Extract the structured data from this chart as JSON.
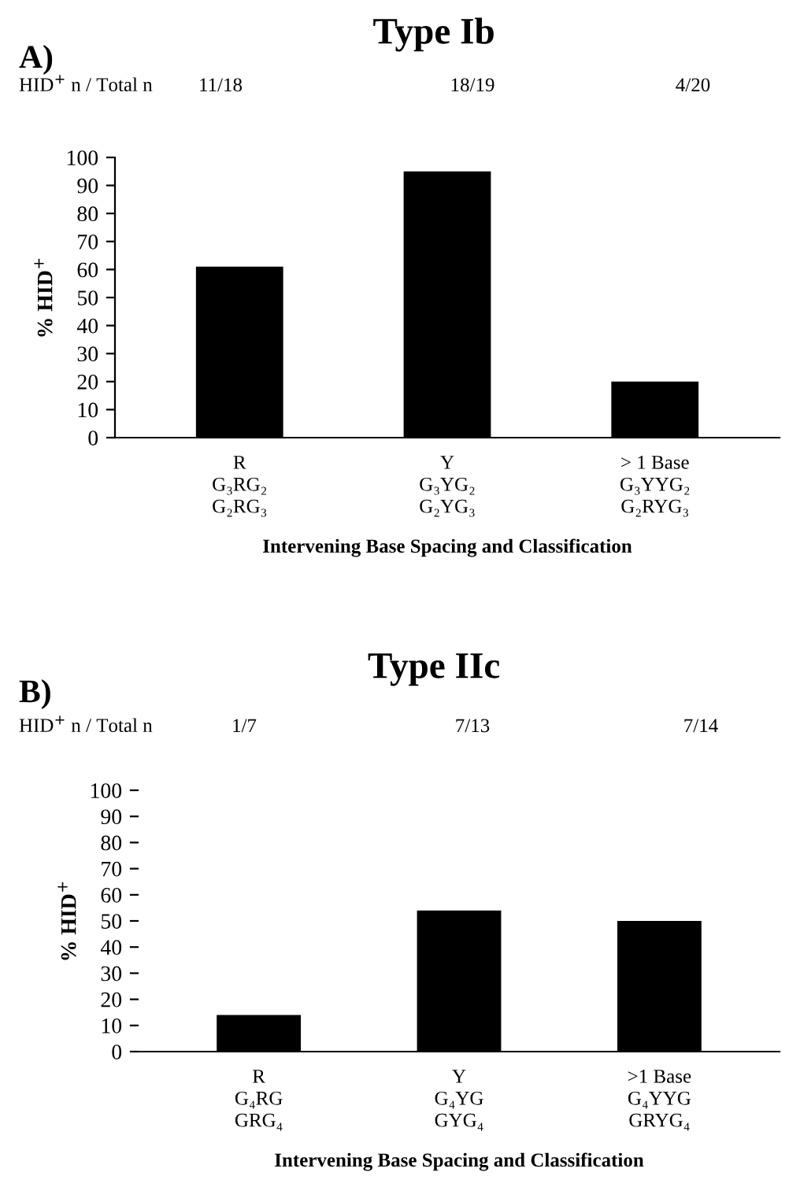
{
  "chart_data": [
    {
      "type": "bar",
      "title": "Type Ib",
      "ylabel": "% HID$^{+}$",
      "xlabel": "Intervening Base Spacing and Classification",
      "categories": [
        "R\nG₃RG₂\nG₂RG₃",
        "Y\nG₃YG₂\nG₂YG₃",
        "> 1 Base\nG₃YYG₂\nG₂RYG₃"
      ],
      "values": [
        61,
        95,
        20
      ],
      "color": "#000000",
      "ylim": [
        0,
        100
      ],
      "yticks": [
        0,
        10,
        20,
        30,
        40,
        50,
        60,
        70,
        80,
        90,
        100
      ],
      "grid": false,
      "annotations": [
        "A)",
        "HID$^{+}$ n / Total n",
        "11/18",
        "18/19",
        "4/20"
      ]
    },
    {
      "type": "bar",
      "title": "Type IIc",
      "ylabel": "% HID$^{+}$",
      "xlabel": "Intervening Base Spacing and Classification",
      "categories": [
        "R\nG₄RG\nGRG₄",
        "Y\nG₄YG\nGYG₄",
        ">1 Base\nG₄YYG\nGRYG₄"
      ],
      "values": [
        14,
        54,
        50
      ],
      "color": "#000000",
      "ylim": [
        0,
        100
      ],
      "yticks": [
        0,
        10,
        20,
        30,
        40,
        50,
        60,
        70,
        80,
        90,
        100
      ],
      "grid": false,
      "annotations": [
        "B)",
        "HID$^{+}$ n / Total n",
        "1/7",
        "7/13",
        "7/14"
      ]
    }
  ]
}
